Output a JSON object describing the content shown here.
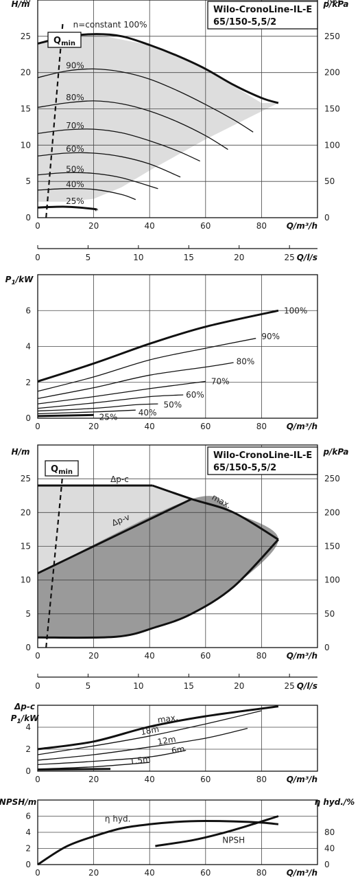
{
  "title_lines": [
    "Wilo-CronoLine-IL-E",
    "65/150-5,5/2"
  ],
  "qmin_label": "Qmin",
  "chart_data": [
    {
      "id": "hq_speed",
      "type": "line",
      "ylabel": "H/m",
      "ylabel2": "p/kPa",
      "xlabel": "Q/m³/h",
      "xlim": [
        0,
        100
      ],
      "ylim": [
        0,
        30
      ],
      "x_ticks": [
        0,
        20,
        40,
        60,
        80
      ],
      "y_ticks": [
        0,
        5,
        10,
        15,
        20,
        25,
        30
      ],
      "y2_ticks": [
        "0",
        "50",
        "100",
        "150",
        "200",
        "250",
        "300"
      ],
      "area": {
        "fill": "#dddddd",
        "upper": [
          [
            0,
            24
          ],
          [
            20,
            25.3
          ],
          [
            40,
            23.8
          ],
          [
            60,
            20.5
          ],
          [
            80,
            15.8
          ],
          [
            86,
            15.8
          ],
          [
            60,
            10.8
          ],
          [
            40,
            6.5
          ],
          [
            30,
            4.2
          ],
          [
            20,
            2.6
          ],
          [
            10,
            2.2
          ],
          [
            0,
            2.2
          ]
        ]
      },
      "series": [
        {
          "label": "n=constant 100%",
          "bold": true,
          "points": [
            [
              0,
              24
            ],
            [
              10,
              24.9
            ],
            [
              20,
              25.3
            ],
            [
              30,
              25
            ],
            [
              40,
              23.8
            ],
            [
              50,
              22.3
            ],
            [
              60,
              20.5
            ],
            [
              70,
              18.3
            ],
            [
              80,
              16.5
            ],
            [
              86,
              15.8
            ]
          ]
        },
        {
          "label": "90%",
          "points": [
            [
              0,
              19.3
            ],
            [
              10,
              20.2
            ],
            [
              20,
              20.5
            ],
            [
              30,
              20.1
            ],
            [
              40,
              19.1
            ],
            [
              50,
              17.5
            ],
            [
              60,
              15.6
            ],
            [
              70,
              13.5
            ],
            [
              77,
              11.8
            ]
          ]
        },
        {
          "label": "80%",
          "points": [
            [
              0,
              15.2
            ],
            [
              10,
              15.8
            ],
            [
              20,
              16.1
            ],
            [
              30,
              15.7
            ],
            [
              40,
              14.7
            ],
            [
              50,
              13.2
            ],
            [
              60,
              11.3
            ],
            [
              68,
              9.4
            ]
          ]
        },
        {
          "label": "70%",
          "points": [
            [
              0,
              11.6
            ],
            [
              10,
              12.1
            ],
            [
              20,
              12.2
            ],
            [
              30,
              11.7
            ],
            [
              40,
              10.6
            ],
            [
              50,
              9.2
            ],
            [
              58,
              7.8
            ]
          ]
        },
        {
          "label": "60%",
          "points": [
            [
              0,
              8.5
            ],
            [
              10,
              8.9
            ],
            [
              20,
              8.9
            ],
            [
              30,
              8.4
            ],
            [
              40,
              7.4
            ],
            [
              51,
              5.6
            ]
          ]
        },
        {
          "label": "50%",
          "points": [
            [
              0,
              5.9
            ],
            [
              10,
              6.2
            ],
            [
              20,
              6.1
            ],
            [
              30,
              5.5
            ],
            [
              43,
              4
            ]
          ]
        },
        {
          "label": "40%",
          "points": [
            [
              0,
              3.8
            ],
            [
              10,
              4
            ],
            [
              20,
              3.9
            ],
            [
              30,
              3.2
            ],
            [
              35,
              2.5
            ]
          ]
        },
        {
          "label": "25%",
          "bold": true,
          "points": [
            [
              0,
              1.4
            ],
            [
              10,
              1.5
            ],
            [
              20,
              1.2
            ],
            [
              21,
              1
            ]
          ]
        }
      ],
      "qmin": [
        [
          3,
          0
        ],
        [
          9,
          27
        ]
      ]
    },
    {
      "id": "q_ls_axis",
      "type": "axis",
      "xlabel": "Q/l/s",
      "xlim": [
        0,
        27.78
      ],
      "x_ticks": [
        0,
        5,
        10,
        15,
        20,
        25
      ]
    },
    {
      "id": "p1_speed",
      "type": "line",
      "ylabel": "P1/kW",
      "xlabel": "Q/m³/h",
      "xlim": [
        0,
        100
      ],
      "ylim": [
        0,
        8
      ],
      "x_ticks": [
        0,
        20,
        40,
        60,
        80
      ],
      "y_ticks": [
        0,
        2,
        4,
        6
      ],
      "series": [
        {
          "label": "100%",
          "bold": true,
          "points": [
            [
              0,
              2.05
            ],
            [
              20,
              3.05
            ],
            [
              40,
              4.15
            ],
            [
              60,
              5.1
            ],
            [
              86,
              6
            ]
          ]
        },
        {
          "label": "90%",
          "points": [
            [
              0,
              1.5
            ],
            [
              20,
              2.3
            ],
            [
              40,
              3.25
            ],
            [
              60,
              3.9
            ],
            [
              78,
              4.45
            ]
          ]
        },
        {
          "label": "80%",
          "points": [
            [
              0,
              1.1
            ],
            [
              20,
              1.7
            ],
            [
              40,
              2.4
            ],
            [
              60,
              2.85
            ],
            [
              70,
              3.1
            ]
          ]
        },
        {
          "label": "70%",
          "points": [
            [
              0,
              0.8
            ],
            [
              20,
              1.2
            ],
            [
              40,
              1.65
            ],
            [
              60,
              2.05
            ]
          ]
        },
        {
          "label": "60%",
          "points": [
            [
              0,
              0.55
            ],
            [
              20,
              0.85
            ],
            [
              40,
              1.2
            ],
            [
              52,
              1.3
            ]
          ]
        },
        {
          "label": "50%",
          "points": [
            [
              0,
              0.4
            ],
            [
              20,
              0.55
            ],
            [
              35,
              0.75
            ],
            [
              43,
              0.8
            ]
          ]
        },
        {
          "label": "40%",
          "points": [
            [
              0,
              0.25
            ],
            [
              20,
              0.35
            ],
            [
              35,
              0.45
            ]
          ]
        },
        {
          "label": "25%",
          "bold": true,
          "points": [
            [
              0,
              0.12
            ],
            [
              20,
              0.18
            ]
          ]
        }
      ]
    },
    {
      "id": "hq_dp",
      "type": "area",
      "ylabel": "H/m",
      "ylabel2": "p/kPa",
      "xlabel": "Q/m³/h",
      "xlim": [
        0,
        100
      ],
      "ylim": [
        0,
        30
      ],
      "x_ticks": [
        0,
        20,
        40,
        60,
        80
      ],
      "y_ticks": [
        0,
        5,
        10,
        15,
        20,
        25
      ],
      "y2_ticks": [
        "0",
        "50",
        "100",
        "150",
        "200",
        "250"
      ],
      "region_light": [
        [
          0,
          24
        ],
        [
          41,
          24
        ],
        [
          55,
          22
        ],
        [
          0,
          11
        ]
      ],
      "region_dark": [
        [
          0,
          11
        ],
        [
          55,
          22
        ],
        [
          70,
          20
        ],
        [
          86,
          16
        ],
        [
          70,
          9
        ],
        [
          55,
          5
        ],
        [
          42,
          3
        ],
        [
          28,
          1.6
        ],
        [
          0,
          1.5
        ]
      ],
      "dp_c": [
        [
          0,
          24
        ],
        [
          41,
          24
        ]
      ],
      "dp_v": [
        [
          0,
          11
        ],
        [
          55,
          22
        ]
      ],
      "max_curve": [
        [
          41,
          24
        ],
        [
          55,
          22
        ],
        [
          70,
          20
        ],
        [
          86,
          16
        ]
      ],
      "outline": [
        [
          86,
          16
        ],
        [
          70,
          9
        ],
        [
          55,
          5
        ],
        [
          42,
          3
        ],
        [
          28,
          1.6
        ],
        [
          0,
          1.5
        ]
      ],
      "labels": {
        "dp_c": "Δp-c",
        "dp_v": "Δp-v",
        "max": "max."
      },
      "qmin": [
        [
          3,
          0
        ],
        [
          9,
          26
        ]
      ]
    },
    {
      "id": "q_ls_axis_2",
      "type": "axis",
      "xlabel": "Q/l/s",
      "xlim": [
        0,
        27.78
      ],
      "x_ticks": [
        0,
        5,
        10,
        15,
        20,
        25
      ]
    },
    {
      "id": "p1_dp",
      "type": "line",
      "ylabel_line1": "Δp-c",
      "ylabel": "P1/kW",
      "xlabel": "Q/m³/h",
      "xlim": [
        0,
        100
      ],
      "ylim": [
        0,
        6
      ],
      "x_ticks": [
        0,
        20,
        40,
        60,
        80
      ],
      "y_ticks": [
        0,
        2,
        4
      ],
      "series": [
        {
          "label": "max.",
          "bold": true,
          "points": [
            [
              0,
              2
            ],
            [
              20,
              2.7
            ],
            [
              40,
              4.05
            ],
            [
              60,
              5
            ],
            [
              86,
              5.9
            ]
          ]
        },
        {
          "label": "18m",
          "points": [
            [
              0,
              1.5
            ],
            [
              20,
              2.3
            ],
            [
              40,
              3.2
            ],
            [
              60,
              4.3
            ],
            [
              80,
              5.5
            ]
          ]
        },
        {
          "label": "12m",
          "points": [
            [
              0,
              1
            ],
            [
              20,
              1.5
            ],
            [
              40,
              2.2
            ],
            [
              60,
              3
            ],
            [
              75,
              3.9
            ]
          ]
        },
        {
          "label": "6m",
          "points": [
            [
              0,
              0.6
            ],
            [
              20,
              0.9
            ],
            [
              40,
              1.3
            ],
            [
              53,
              1.9
            ]
          ]
        },
        {
          "label": "1.5m",
          "points": [
            [
              0,
              0.2
            ],
            [
              20,
              0.4
            ],
            [
              40,
              0.8
            ]
          ]
        },
        {
          "label": "",
          "bold": true,
          "points": [
            [
              0,
              0.15
            ],
            [
              26,
              0.2
            ]
          ]
        }
      ]
    },
    {
      "id": "npsh_eta",
      "type": "line",
      "ylabel": "NPSH/m",
      "ylabel2": "η hyd./%",
      "xlabel": "Q/m³/h",
      "xlim": [
        0,
        100
      ],
      "ylim": [
        0,
        8
      ],
      "x_ticks": [
        0,
        20,
        40,
        60,
        80
      ],
      "y_ticks": [
        0,
        2,
        4,
        6
      ],
      "y2_ticks": [
        "0",
        "40",
        "80"
      ],
      "series": [
        {
          "label": "η hyd.",
          "bold": true,
          "points": [
            [
              0,
              0
            ],
            [
              10,
              2.2
            ],
            [
              20,
              3.5
            ],
            [
              30,
              4.5
            ],
            [
              40,
              5
            ],
            [
              50,
              5.3
            ],
            [
              60,
              5.4
            ],
            [
              70,
              5.35
            ],
            [
              80,
              5.2
            ],
            [
              86,
              5
            ]
          ]
        },
        {
          "label": "NPSH",
          "bold": true,
          "points": [
            [
              42,
              2.3
            ],
            [
              55,
              3
            ],
            [
              65,
              3.8
            ],
            [
              75,
              4.8
            ],
            [
              86,
              6
            ]
          ]
        }
      ]
    }
  ]
}
